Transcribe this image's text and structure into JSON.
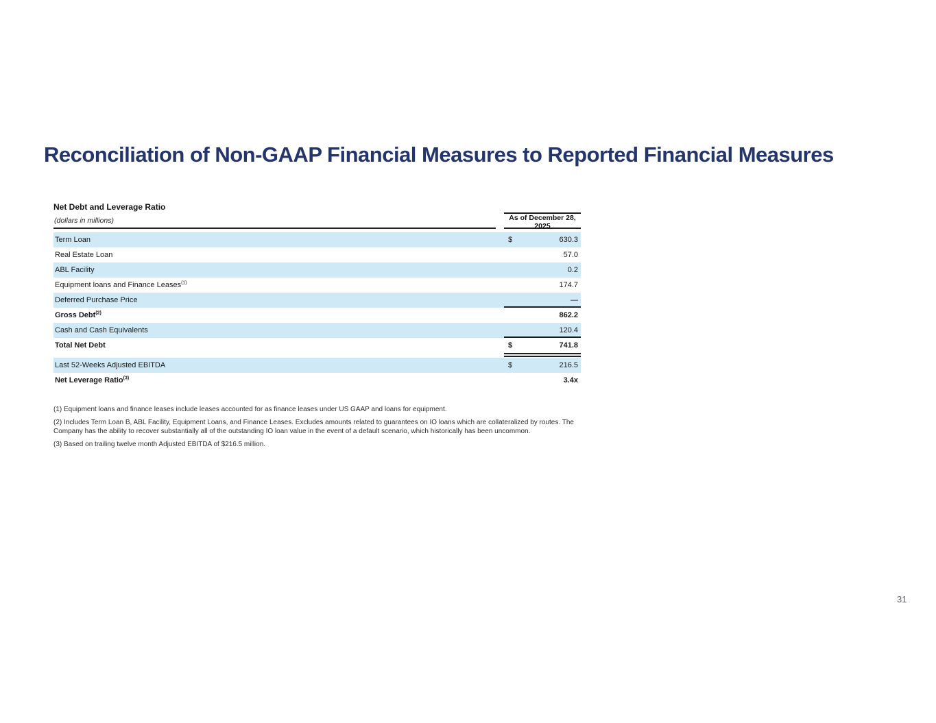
{
  "page": {
    "title": "Reconciliation of Non-GAAP Financial Measures to Reported Financial Measures",
    "page_number": "31",
    "title_color": "#24356B",
    "row_highlight_color": "#CFE9F6"
  },
  "table": {
    "section_title": "Net Debt and Leverage Ratio",
    "units_label": "(dollars in millions)",
    "column_header": {
      "line1": "As of December 28,",
      "line2": "2025"
    },
    "rows": [
      {
        "label": "Term Loan",
        "sup": "",
        "currency": "$",
        "value": "630.3",
        "bold": false,
        "underline": "none"
      },
      {
        "label": "Real Estate Loan",
        "sup": "",
        "currency": "",
        "value": "57.0",
        "bold": false,
        "underline": "none"
      },
      {
        "label": "ABL Facility",
        "sup": "",
        "currency": "",
        "value": "0.2",
        "bold": false,
        "underline": "none"
      },
      {
        "label": "Equipment loans and Finance Leases",
        "sup": "(1)",
        "currency": "",
        "value": "174.7",
        "bold": false,
        "underline": "none"
      },
      {
        "label": "Deferred Purchase Price",
        "sup": "",
        "currency": "",
        "value": "—",
        "bold": false,
        "underline": "single"
      },
      {
        "label": "Gross Debt",
        "sup": "(2)",
        "currency": "",
        "value": "862.2",
        "bold": true,
        "underline": "none"
      },
      {
        "label": "Cash and Cash Equivalents",
        "sup": "",
        "currency": "",
        "value": "120.4",
        "bold": false,
        "underline": "single"
      },
      {
        "label": "Total Net Debt",
        "sup": "",
        "currency": "$",
        "value": "741.8",
        "bold": true,
        "underline": "double"
      },
      {
        "label": "Last 52-Weeks Adjusted EBITDA",
        "sup": "",
        "currency": "$",
        "value": "216.5",
        "bold": false,
        "underline": "none",
        "gap": true
      },
      {
        "label": "Net Leverage Ratio",
        "sup": "(3)",
        "currency": "",
        "value": "3.4x",
        "bold": true,
        "underline": "none"
      }
    ],
    "footnotes": [
      "(1) Equipment loans and finance leases include leases accounted for as finance leases under US GAAP and loans for equipment.",
      "(2) Includes Term Loan B, ABL Facility, Equipment Loans, and Finance Leases. Excludes amounts related to guarantees on IO loans which are collateralized by routes. The Company has the ability to recover substantially all of the outstanding IO loan value in the event of a default scenario, which historically has been uncommon.",
      "(3) Based on trailing twelve month Adjusted EBITDA of $216.5 million."
    ]
  }
}
